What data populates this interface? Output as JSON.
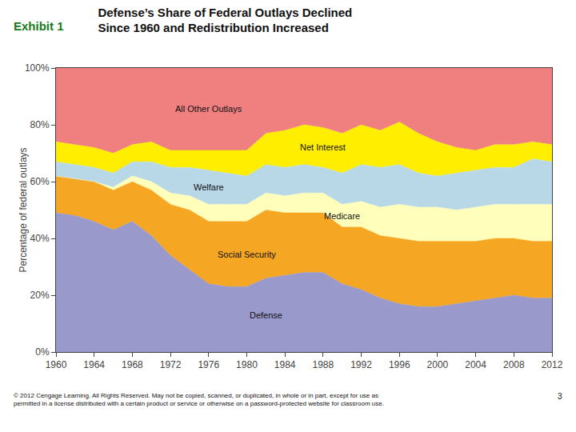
{
  "chart_data": {
    "type": "area",
    "title": "Defense’s Share of Federal Outlays Declined\nSince 1960 and Redistribution Increased",
    "ylabel": "Percentage of federal outlays",
    "annotations": [
      "Exhibit 1",
      "© 2012 Cengage Learning. All Rights Reserved. May not be copied, scanned, or duplicated, in whole or in part, except for use as\npermitted in a license distributed with a certain product or service or otherwise on a password-protected website for classroom use.",
      "3"
    ],
    "stacked": true,
    "grid": false,
    "x": [
      1960,
      1962,
      1964,
      1966,
      1968,
      1970,
      1972,
      1974,
      1976,
      1978,
      1980,
      1982,
      1984,
      1986,
      1988,
      1990,
      1992,
      1994,
      1996,
      1998,
      2000,
      2002,
      2004,
      2006,
      2008,
      2010,
      2012
    ],
    "series": [
      {
        "name": "Defense",
        "color": "#9999cc",
        "values": [
          49,
          48,
          46,
          43,
          46,
          41,
          34,
          29,
          24,
          23,
          23,
          26,
          27,
          28,
          28,
          24,
          22,
          19,
          17,
          16,
          16,
          17,
          18,
          19,
          20,
          19,
          19
        ]
      },
      {
        "name": "Social Security",
        "color": "#f5a623",
        "values": [
          13,
          13,
          14,
          14,
          14,
          16,
          18,
          21,
          22,
          23,
          23,
          24,
          22,
          21,
          21,
          20,
          22,
          22,
          23,
          23,
          23,
          22,
          21,
          21,
          20,
          20,
          20
        ]
      },
      {
        "name": "Medicare",
        "color": "#ffffbb",
        "values": [
          0,
          0,
          0,
          1,
          2,
          3,
          4,
          5,
          6,
          6,
          6,
          6,
          6,
          7,
          7,
          8,
          9,
          10,
          12,
          12,
          12,
          11,
          12,
          12,
          12,
          13,
          13
        ]
      },
      {
        "name": "Welfare",
        "color": "#b8d8e8",
        "values": [
          5,
          5,
          5,
          5,
          5,
          7,
          9,
          10,
          12,
          11,
          10,
          10,
          10,
          10,
          9,
          11,
          13,
          14,
          14,
          12,
          11,
          13,
          13,
          13,
          13,
          16,
          15
        ]
      },
      {
        "name": "Net Interest",
        "color": "#ffee00",
        "values": [
          7,
          7,
          7,
          7,
          6,
          7,
          6,
          6,
          7,
          8,
          9,
          11,
          13,
          14,
          14,
          14,
          14,
          13,
          15,
          14,
          12,
          9,
          7,
          8,
          8,
          6,
          6
        ]
      },
      {
        "name": "All Other Outlays",
        "color": "#f08080",
        "values": [
          26,
          27,
          28,
          30,
          27,
          26,
          29,
          29,
          29,
          29,
          29,
          23,
          22,
          20,
          21,
          23,
          20,
          22,
          19,
          23,
          26,
          28,
          29,
          27,
          27,
          26,
          27
        ]
      }
    ],
    "xlim": [
      1960,
      2012
    ],
    "xticks": [
      1960,
      1964,
      1968,
      1972,
      1976,
      1980,
      1984,
      1988,
      1992,
      1996,
      2000,
      2004,
      2008,
      2012
    ],
    "ylim": [
      0,
      100
    ],
    "yticks": [
      {
        "value": 0,
        "label": "0%"
      },
      {
        "value": 20,
        "label": "20%"
      },
      {
        "value": 40,
        "label": "40%"
      },
      {
        "value": 60,
        "label": "60%"
      },
      {
        "value": 80,
        "label": "80%"
      },
      {
        "value": 100,
        "label": "100%"
      }
    ]
  }
}
